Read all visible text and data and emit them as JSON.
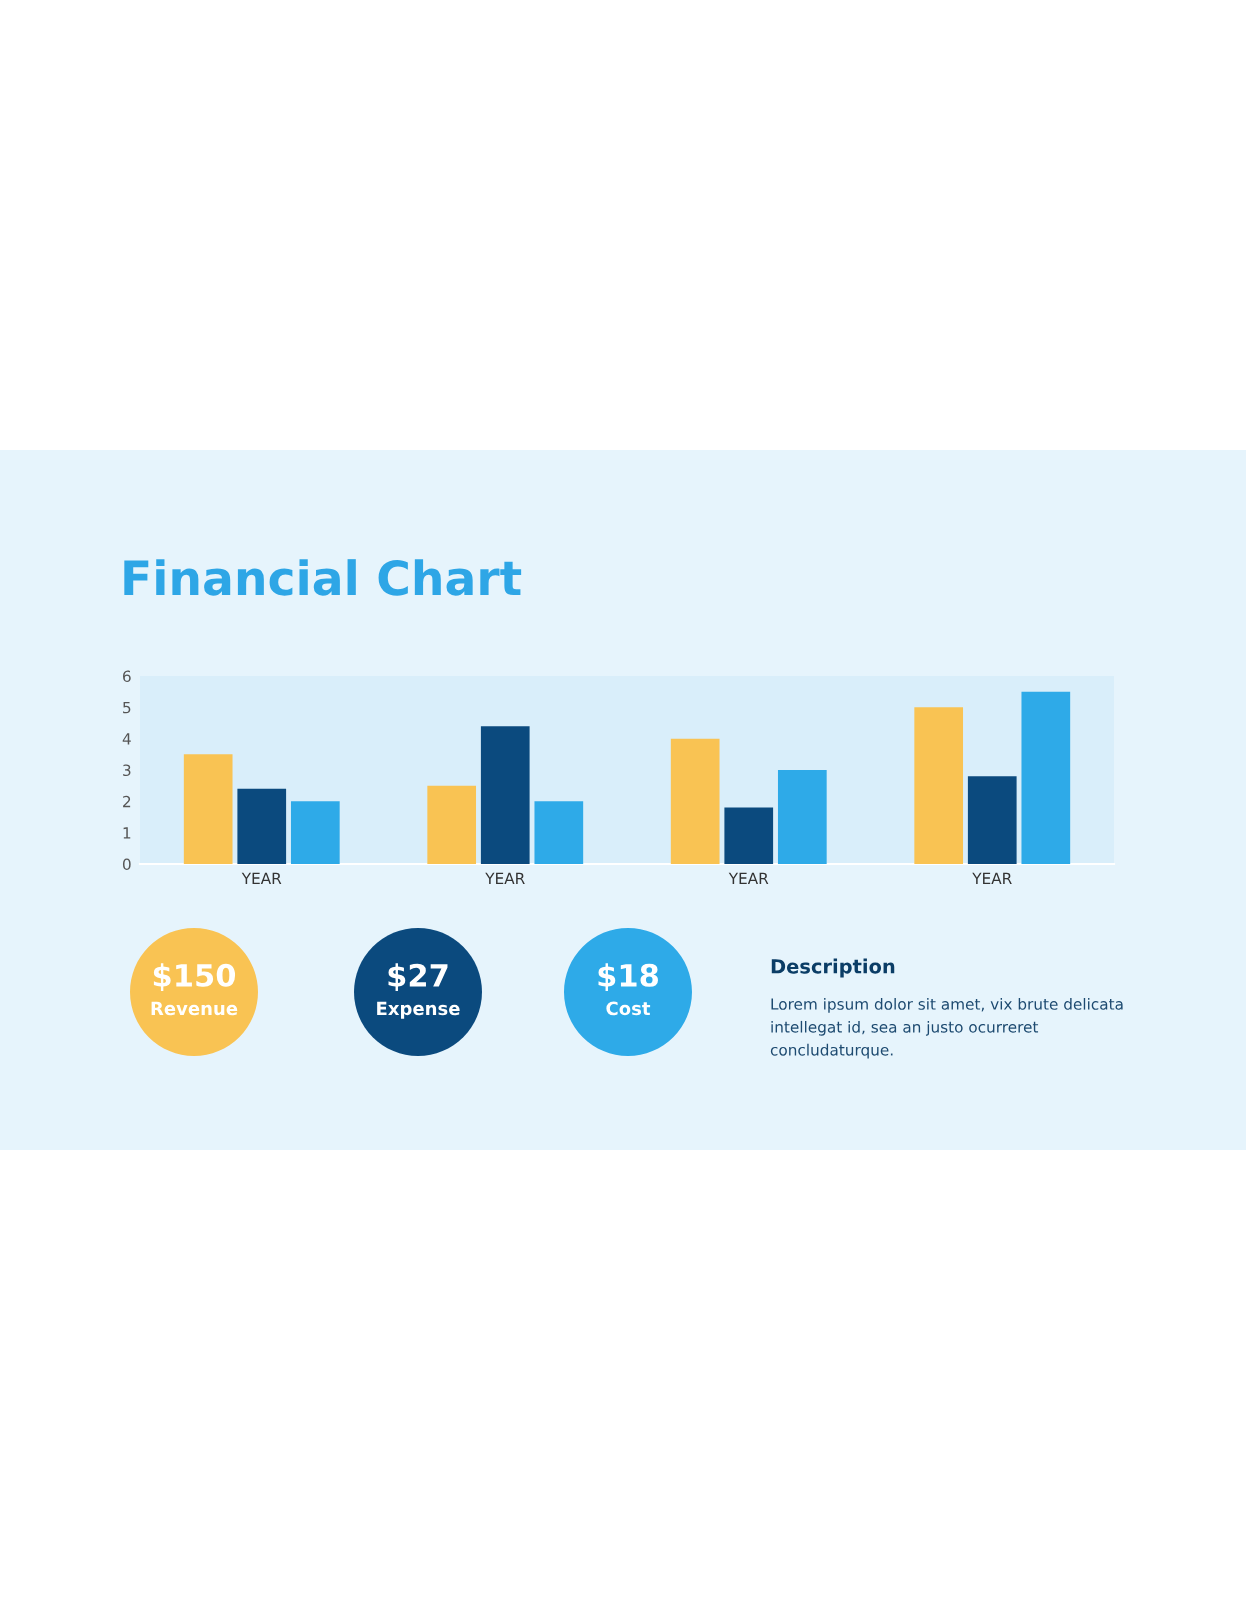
{
  "chart_data": {
    "type": "bar",
    "title": "Financial Chart",
    "categories": [
      "YEAR",
      "YEAR",
      "YEAR",
      "YEAR"
    ],
    "series": [
      {
        "color": "#f9c353",
        "values": [
          3.5,
          2.5,
          4.0,
          5.0
        ]
      },
      {
        "color": "#0b4a7e",
        "values": [
          2.4,
          4.4,
          1.8,
          2.8
        ]
      },
      {
        "color": "#2eaae8",
        "values": [
          2.0,
          2.0,
          3.0,
          5.5
        ]
      }
    ],
    "ylim": [
      0,
      6
    ],
    "yticks": [
      0,
      1,
      2,
      3,
      4,
      5,
      6
    ],
    "grid": false,
    "annotations": [
      "$150",
      "Revenue",
      "$27",
      "Expense",
      "$18",
      "Cost",
      "Description",
      "Lorem ipsum dolor sit amet, vix brute delicata intellegat id, sea an justo ocurreret concludaturque."
    ]
  }
}
